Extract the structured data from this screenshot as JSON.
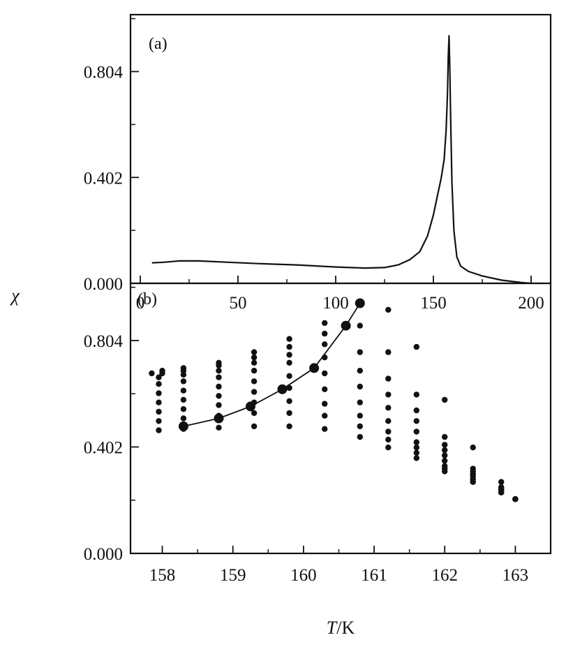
{
  "figure": {
    "ylabel": "χ",
    "xlabel_var": "T",
    "xlabel_unit": "/K",
    "colors": {
      "ink": "#111111",
      "background": "#ffffff"
    }
  },
  "chart_data": [
    {
      "panel_label": "(a)",
      "type": "line",
      "x_ticks": [
        0,
        50,
        100,
        150,
        200
      ],
      "y_ticks": [
        0.0,
        0.402,
        0.804
      ],
      "y_tick_labels": [
        "0.000",
        "0.402",
        "0.804"
      ],
      "xlim": [
        -5,
        210
      ],
      "ylim": [
        0.0,
        1.02
      ],
      "series": [
        {
          "x": [
            6,
            12,
            20,
            30,
            45,
            60,
            80,
            100,
            115,
            125,
            132,
            138,
            143,
            147,
            150,
            152,
            154,
            155.5,
            156.5,
            157.2,
            157.6,
            158.0,
            158.4,
            158.9,
            159.5,
            160.5,
            162,
            164,
            168,
            175,
            185,
            195,
            200
          ],
          "y": [
            0.078,
            0.08,
            0.085,
            0.085,
            0.08,
            0.075,
            0.07,
            0.062,
            0.058,
            0.06,
            0.07,
            0.09,
            0.12,
            0.18,
            0.26,
            0.33,
            0.4,
            0.47,
            0.58,
            0.72,
            0.86,
            0.94,
            0.82,
            0.6,
            0.38,
            0.2,
            0.1,
            0.065,
            0.045,
            0.028,
            0.012,
            0.003,
            0.0
          ]
        }
      ]
    },
    {
      "panel_label": "(b)",
      "type": "scatter",
      "x_ticks": [
        158,
        159,
        160,
        161,
        162,
        163
      ],
      "y_ticks": [
        0.0,
        0.402,
        0.804
      ],
      "y_tick_labels": [
        "0.000",
        "0.402",
        "0.804"
      ],
      "xlim": [
        157.55,
        163.5
      ],
      "ylim": [
        0.0,
        1.02
      ],
      "series": [
        {
          "x": [
            157.95,
            158.3,
            158.8,
            159.3,
            159.8,
            160.3,
            160.8,
            161.2,
            161.6,
            162.0,
            162.4,
            162.8,
            163.0
          ],
          "y": [
            0.465,
            0.47,
            0.475,
            0.48,
            0.48,
            0.47,
            0.44,
            0.4,
            0.36,
            0.31,
            0.27,
            0.23,
            0.205
          ]
        },
        {
          "x": [
            157.95,
            158.3,
            158.8,
            159.3,
            159.8,
            160.3,
            160.8,
            161.2,
            161.6,
            162.0,
            162.4,
            162.8,
            163.0
          ],
          "y": [
            0.5,
            0.51,
            0.52,
            0.53,
            0.53,
            0.52,
            0.48,
            0.43,
            0.38,
            0.32,
            0.27,
            0.23,
            0.205
          ]
        },
        {
          "x": [
            157.95,
            158.3,
            158.8,
            159.3,
            159.8,
            160.3,
            160.8,
            161.2,
            161.6,
            162.0,
            162.4,
            162.8,
            163.0
          ],
          "y": [
            0.535,
            0.545,
            0.56,
            0.57,
            0.575,
            0.565,
            0.52,
            0.46,
            0.4,
            0.33,
            0.28,
            0.23,
            0.205
          ]
        },
        {
          "x": [
            157.95,
            158.3,
            158.8,
            159.3,
            159.8,
            160.3,
            160.8,
            161.2,
            161.6,
            162.0,
            162.4,
            162.8,
            163.0
          ],
          "y": [
            0.57,
            0.58,
            0.595,
            0.61,
            0.625,
            0.62,
            0.57,
            0.5,
            0.42,
            0.35,
            0.29,
            0.24,
            0.205
          ]
        },
        {
          "x": [
            157.95,
            158.3,
            158.8,
            159.3,
            159.8,
            160.3,
            160.8,
            161.2,
            161.6,
            162.0,
            162.4,
            162.8,
            163.0
          ],
          "y": [
            0.605,
            0.615,
            0.63,
            0.65,
            0.67,
            0.68,
            0.63,
            0.55,
            0.46,
            0.37,
            0.3,
            0.24,
            0.205
          ]
        },
        {
          "x": [
            157.95,
            158.3,
            158.8,
            159.3,
            159.8,
            160.3,
            160.8,
            161.2,
            161.6,
            162.0,
            162.4,
            162.8,
            163.0
          ],
          "y": [
            0.64,
            0.65,
            0.665,
            0.69,
            0.72,
            0.74,
            0.69,
            0.6,
            0.5,
            0.39,
            0.3,
            0.24,
            0.205
          ]
        },
        {
          "x": [
            157.95,
            158.3,
            158.8,
            159.3,
            159.8,
            160.3,
            160.8,
            161.2,
            161.6,
            162.0,
            162.4,
            162.8,
            163.0
          ],
          "y": [
            0.665,
            0.675,
            0.69,
            0.72,
            0.75,
            0.79,
            0.76,
            0.66,
            0.54,
            0.41,
            0.31,
            0.245,
            0.205
          ]
        },
        {
          "x": [
            158.0,
            158.3,
            158.8,
            159.3,
            159.8,
            160.3,
            160.8,
            161.2,
            161.6,
            162.0,
            162.4,
            162.8,
            163.0
          ],
          "y": [
            0.68,
            0.69,
            0.71,
            0.74,
            0.78,
            0.83,
            0.86,
            0.76,
            0.6,
            0.44,
            0.32,
            0.25,
            0.205
          ]
        },
        {
          "x": [
            157.85,
            158.0,
            158.3,
            158.8,
            159.3,
            159.8,
            160.3,
            160.8,
            161.2,
            161.6,
            162.0,
            162.4,
            162.8,
            163.0
          ],
          "y": [
            0.68,
            0.69,
            0.7,
            0.72,
            0.76,
            0.81,
            0.87,
            0.95,
            0.92,
            0.78,
            0.58,
            0.4,
            0.27,
            0.205
          ]
        }
      ],
      "line": {
        "x": [
          158.3,
          158.8,
          159.25,
          159.7,
          160.15,
          160.6,
          160.8
        ],
        "y": [
          0.48,
          0.51,
          0.555,
          0.62,
          0.7,
          0.86,
          0.945
        ]
      }
    }
  ]
}
